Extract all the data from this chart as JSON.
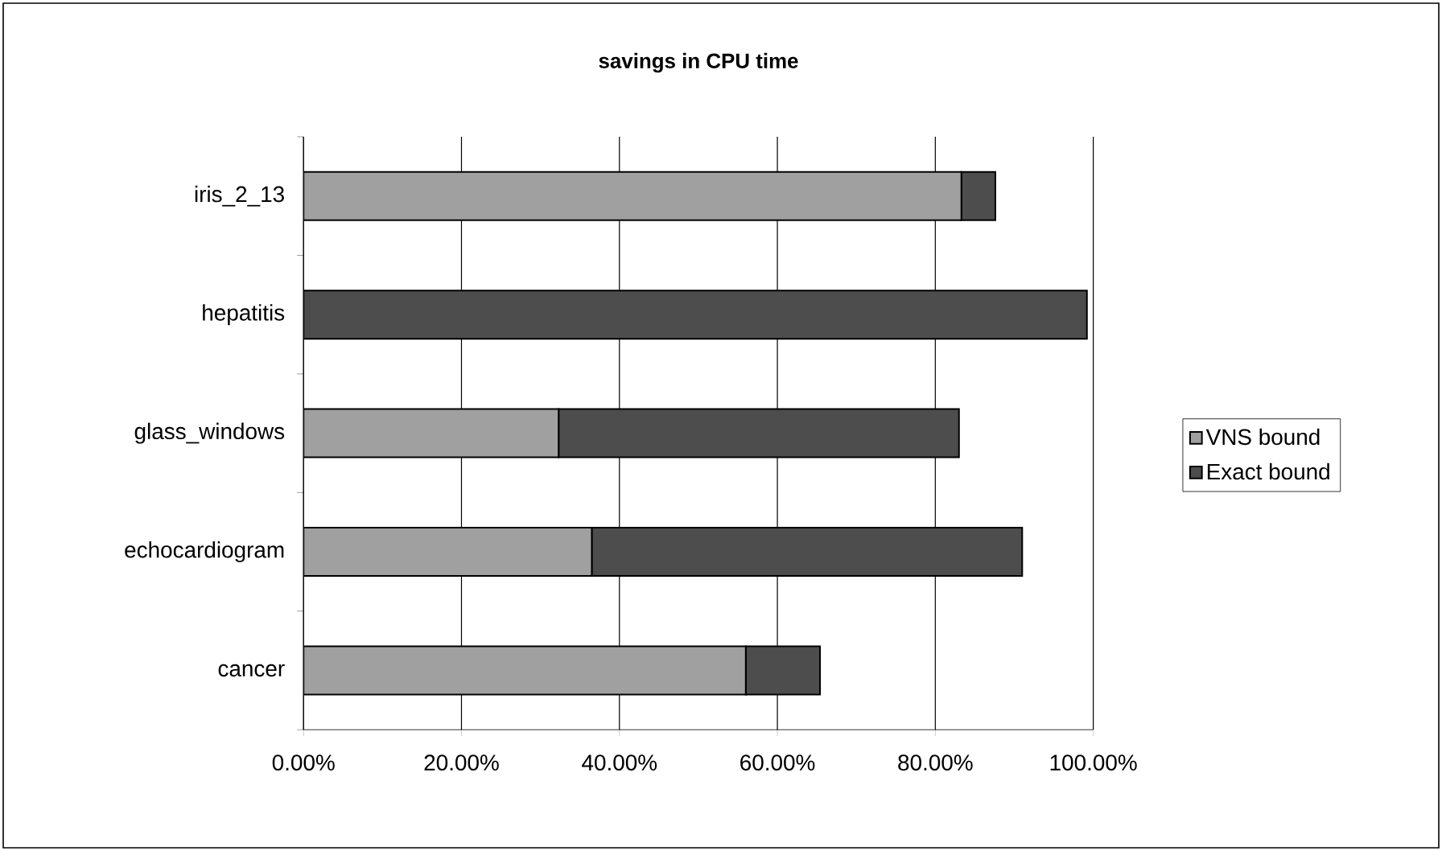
{
  "chart_data": {
    "type": "bar",
    "orientation": "horizontal",
    "stacked": true,
    "title": "savings in CPU time",
    "categories": [
      "iris_2_13",
      "hepatitis",
      "glass_windows",
      "echocardiogram",
      "cancer"
    ],
    "series": [
      {
        "name": "VNS bound",
        "color": "#a0a0a0",
        "values": [
          83.3,
          0,
          32.3,
          36.5,
          56.0
        ]
      },
      {
        "name": "Exact bound",
        "color": "#4d4d4d",
        "values": [
          4.3,
          99.2,
          50.7,
          54.5,
          9.4
        ]
      }
    ],
    "xlim": [
      0,
      100
    ],
    "xticks": [
      {
        "value": 0,
        "label": "0.00%"
      },
      {
        "value": 20,
        "label": "20.00%"
      },
      {
        "value": 40,
        "label": "40.00%"
      },
      {
        "value": 60,
        "label": "60.00%"
      },
      {
        "value": 80,
        "label": "80.00%"
      },
      {
        "value": 100,
        "label": "100.00%"
      }
    ],
    "grid": "x",
    "legend": "right"
  }
}
